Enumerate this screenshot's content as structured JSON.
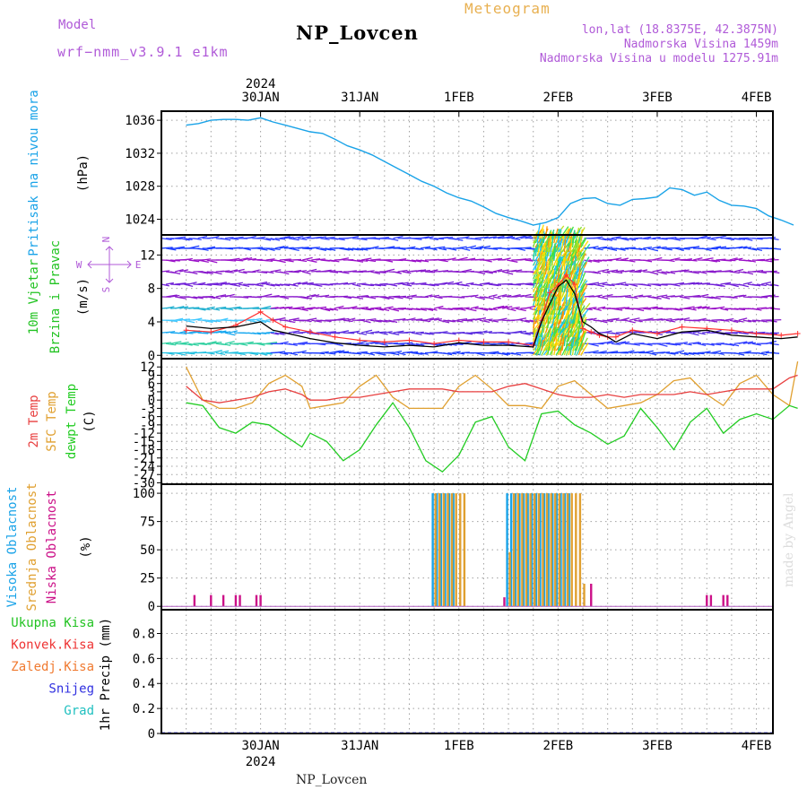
{
  "header": {
    "model_label": "Model",
    "model_name": "wrf−nmm_v3.9.1  e1km",
    "product": "Meteogram",
    "station": "NP_Lovcen",
    "coords": "lon,lat (18.8375E, 42.3875N)",
    "elevation": "Nadmorska Visina 1459m",
    "model_elevation": "Nadmorska Visina u modelu 1275.91m",
    "footer_station": "NP_Lovcen",
    "watermark": "made by Angel"
  },
  "colors": {
    "pressure": "#1aa3e8",
    "wind_label": "#22c322",
    "wind_label2": "#22c322",
    "speed_line": "#000000",
    "gust_line": "#ff3030",
    "temp2m": "#e84040",
    "sfc_temp": "#e0a030",
    "dewpt": "#22cc22",
    "high_cloud": "#1aa3e8",
    "mid_cloud": "#e0a030",
    "low_cloud": "#cc1188",
    "compass": "#b05ad8",
    "ukupna": "#22c322",
    "konvek": "#ee3333",
    "zaledj": "#f07a30",
    "snijeg": "#3030e0",
    "grad": "#20c0c0"
  },
  "chart_data": [
    {
      "type": "line",
      "name": "pressure",
      "ylabel_main": "Pritisak na nivou mora",
      "ylabel_unit": "(hPa)",
      "x_ticks": [
        "30JAN",
        "31JAN",
        "1FEB",
        "2FEB",
        "3FEB",
        "4FEB"
      ],
      "x_year": "2024",
      "yticks": [
        1024,
        1028,
        1032,
        1036
      ],
      "ylim": [
        1022.1,
        1037.1
      ],
      "hours": 148,
      "x": [
        0,
        3,
        6,
        9,
        12,
        15,
        18,
        21,
        24,
        27,
        30,
        33,
        36,
        39,
        42,
        45,
        48,
        51,
        54,
        57,
        60,
        63,
        66,
        69,
        72,
        75,
        78,
        81,
        84,
        87,
        90,
        93,
        96,
        99,
        102,
        105,
        108,
        111,
        114,
        117,
        120,
        123,
        126,
        129,
        132,
        135,
        138,
        141,
        144,
        147
      ],
      "values": [
        1035.4,
        1035.6,
        1036.0,
        1036.1,
        1036.1,
        1036.0,
        1036.3,
        1035.8,
        1035.4,
        1035.0,
        1034.6,
        1034.4,
        1033.7,
        1032.9,
        1032.4,
        1031.8,
        1031.0,
        1030.2,
        1029.4,
        1028.6,
        1028.0,
        1027.2,
        1026.6,
        1026.2,
        1025.5,
        1024.7,
        1024.2,
        1023.8,
        1023.3,
        1023.6,
        1024.2,
        1025.9,
        1026.5,
        1026.6,
        1025.9,
        1025.7,
        1026.4,
        1026.5,
        1026.7,
        1027.8,
        1027.6,
        1026.9,
        1027.3,
        1026.3,
        1025.7,
        1025.6,
        1025.3,
        1024.4,
        1023.9,
        1023.3
      ]
    },
    {
      "type": "line",
      "name": "wind",
      "ylabel_main": "10m Vjetar",
      "ylabel_sub": "Brzina i Pravac",
      "ylabel_unit": "(m/s)",
      "compass": {
        "n": "N",
        "s": "S",
        "w": "W",
        "e": "E"
      },
      "yticks": [
        0,
        4,
        8,
        12
      ],
      "ylim": [
        -0.4,
        14.4
      ],
      "x": [
        0,
        6,
        12,
        18,
        21,
        24,
        30,
        36,
        42,
        48,
        54,
        60,
        66,
        72,
        78,
        84,
        86,
        88,
        90,
        92,
        94,
        96,
        98,
        100,
        102,
        104,
        108,
        114,
        120,
        126,
        132,
        138,
        144,
        148
      ],
      "speed": [
        3.5,
        3.2,
        3.4,
        4.0,
        3.0,
        2.7,
        2.0,
        1.5,
        1.2,
        1.0,
        1.2,
        1.0,
        1.5,
        1.2,
        1.2,
        1.0,
        4.0,
        6.2,
        8.2,
        9.0,
        7.4,
        4.0,
        3.4,
        2.6,
        2.2,
        1.6,
        2.6,
        2.0,
        2.8,
        3.0,
        2.4,
        2.2,
        2.0,
        2.2
      ],
      "gust": [
        3.0,
        2.8,
        3.6,
        5.2,
        4.2,
        3.4,
        2.8,
        2.2,
        1.8,
        1.6,
        1.8,
        1.4,
        1.8,
        1.6,
        1.6,
        1.2,
        4.2,
        7.5,
        8.4,
        9.6,
        8.5,
        3.2,
        2.8,
        2.4,
        2.2,
        2.2,
        3.0,
        2.6,
        3.4,
        3.2,
        3.0,
        2.6,
        2.4,
        2.6
      ]
    },
    {
      "type": "line",
      "name": "temperature",
      "ylabel_main": "2m Temp",
      "ylabel_sub": "SFC Temp",
      "ylabel_sub2": "dewpt Temp",
      "ylabel_unit": "(C)",
      "yticks": [
        -30,
        -27,
        -24,
        -21,
        -18,
        -15,
        -12,
        -9,
        -6,
        -3,
        0,
        3,
        6,
        9,
        12
      ],
      "ylim": [
        -30.5,
        15.0
      ],
      "x": [
        0,
        4,
        8,
        12,
        16,
        20,
        24,
        28,
        30,
        34,
        38,
        42,
        46,
        50,
        54,
        58,
        62,
        66,
        70,
        74,
        78,
        82,
        86,
        90,
        94,
        98,
        102,
        106,
        110,
        114,
        118,
        122,
        126,
        130,
        134,
        138,
        142,
        146,
        148
      ],
      "t2m": [
        5,
        0,
        -1,
        0,
        1,
        3,
        4,
        2,
        0,
        0,
        1,
        1,
        2,
        3,
        4,
        4,
        4,
        3,
        3,
        3,
        5,
        6,
        4,
        2,
        1,
        1,
        2,
        1,
        2,
        2,
        2,
        3,
        2,
        3,
        4,
        4,
        4,
        8,
        9
      ],
      "sfc": [
        12,
        0,
        -3,
        -3,
        -1,
        6,
        9,
        5,
        -3,
        -2,
        -1,
        5,
        9,
        1,
        -3,
        -3,
        -3,
        5,
        9,
        4,
        -2,
        -2,
        -3,
        5,
        7,
        2,
        -3,
        -2,
        -1,
        2,
        7,
        8,
        2,
        -2,
        6,
        9,
        2,
        -2,
        14
      ],
      "dewpt": [
        -1,
        -2,
        -10,
        -12,
        -8,
        -9,
        -13,
        -17,
        -12,
        -15,
        -22,
        -18,
        -9,
        -1,
        -10,
        -22,
        -26,
        -20,
        -8,
        -6,
        -17,
        -22,
        -5,
        -4,
        -9,
        -12,
        -16,
        -13,
        -3,
        -10,
        -18,
        -8,
        -3,
        -12,
        -7,
        -5,
        -7,
        -2,
        -3
      ]
    },
    {
      "type": "bar",
      "name": "clouds",
      "ylabel_main": "Visoka Oblacnost",
      "ylabel_sub": "Srednja Oblacnost",
      "ylabel_sub2": "Niska Oblacnost",
      "ylabel_unit": "(%)",
      "yticks": [
        0,
        25,
        50,
        75,
        100
      ],
      "ylim": [
        -3,
        108
      ],
      "high": {
        "x": [
          60,
          61,
          62,
          63,
          64,
          65,
          78,
          79,
          80,
          81,
          82,
          83,
          84,
          85,
          86,
          87,
          88,
          89,
          90,
          91,
          92,
          93
        ],
        "values": [
          100,
          100,
          100,
          100,
          100,
          100,
          100,
          100,
          100,
          100,
          100,
          100,
          100,
          100,
          100,
          100,
          100,
          100,
          100,
          100,
          100,
          100
        ]
      },
      "mid": {
        "x": [
          60,
          61,
          62,
          63,
          64,
          65,
          66,
          67,
          78,
          79,
          80,
          81,
          82,
          83,
          84,
          85,
          86,
          87,
          88,
          89,
          90,
          91,
          92,
          93,
          94,
          95,
          96
        ],
        "values": [
          100,
          100,
          100,
          100,
          100,
          100,
          100,
          100,
          48,
          100,
          100,
          100,
          100,
          100,
          100,
          100,
          100,
          100,
          100,
          100,
          100,
          100,
          100,
          100,
          100,
          100,
          20
        ]
      },
      "low": {
        "x": [
          2,
          6,
          9,
          12,
          13,
          17,
          18,
          77,
          98,
          126,
          127,
          130,
          131
        ],
        "values": [
          10,
          10,
          10,
          10,
          10,
          10,
          10,
          8,
          20,
          10,
          10,
          10,
          10
        ]
      }
    },
    {
      "type": "area",
      "name": "precipitation",
      "ylabel_unit": "1hr Precip (mm)",
      "legend": [
        "Ukupna  Kisa",
        "Konvek.Kisa",
        "Zaledj.Kisa",
        "Snijeg",
        "Grad"
      ],
      "yticks": [
        0,
        0.2,
        0.4,
        0.6,
        0.8
      ],
      "ylim": [
        0,
        0.99
      ],
      "values": []
    }
  ]
}
